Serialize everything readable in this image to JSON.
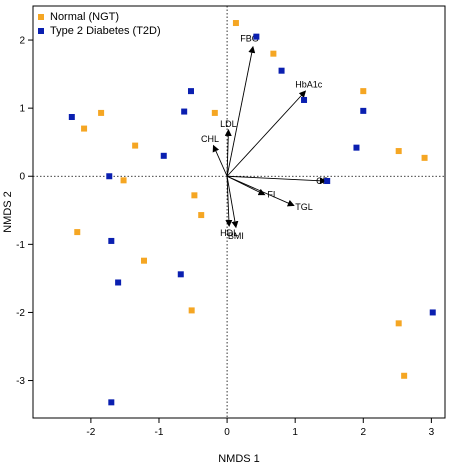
{
  "chart_data": {
    "type": "scatter",
    "xlabel": "NMDS 1",
    "ylabel": "NMDS 2",
    "xlim": [
      -2.85,
      3.2
    ],
    "ylim": [
      -3.55,
      2.5
    ],
    "xticks": [
      -2,
      -1,
      0,
      1,
      2,
      3
    ],
    "yticks": [
      2,
      1,
      0,
      -1,
      -2,
      -3
    ],
    "reference_lines": {
      "x": 0,
      "y": 0,
      "style": "dotted"
    },
    "legend_position": "top-left",
    "series": [
      {
        "name": "Normal (NGT)",
        "color": "#f5a623",
        "marker": "square",
        "points": [
          [
            0.13,
            2.25
          ],
          [
            0.68,
            1.8
          ],
          [
            2.0,
            1.25
          ],
          [
            -1.85,
            0.93
          ],
          [
            -2.1,
            0.7
          ],
          [
            -0.18,
            0.93
          ],
          [
            -1.35,
            0.45
          ],
          [
            2.52,
            0.37
          ],
          [
            2.9,
            0.27
          ],
          [
            -1.52,
            -0.06
          ],
          [
            -0.48,
            -0.28
          ],
          [
            -0.38,
            -0.57
          ],
          [
            -2.2,
            -0.82
          ],
          [
            -1.22,
            -1.24
          ],
          [
            -0.52,
            -1.97
          ],
          [
            2.52,
            -2.16
          ],
          [
            2.6,
            -2.93
          ]
        ]
      },
      {
        "name": "Type 2 Diabetes (T2D)",
        "color": "#0a1fb0",
        "marker": "square",
        "points": [
          [
            0.43,
            2.05
          ],
          [
            0.8,
            1.55
          ],
          [
            -0.53,
            1.25
          ],
          [
            1.13,
            1.12
          ],
          [
            -2.28,
            0.87
          ],
          [
            -0.63,
            0.95
          ],
          [
            2.0,
            0.96
          ],
          [
            -0.93,
            0.3
          ],
          [
            1.9,
            0.42
          ],
          [
            -1.73,
            0.0
          ],
          [
            1.47,
            -0.07
          ],
          [
            -1.7,
            -0.95
          ],
          [
            -0.68,
            -1.44
          ],
          [
            -1.6,
            -1.56
          ],
          [
            3.02,
            -2.0
          ],
          [
            -1.7,
            -3.32
          ]
        ]
      }
    ],
    "vectors": [
      {
        "label": "FBG",
        "x": 0.38,
        "y": 1.9,
        "label_dx": -0.05,
        "label_dy": 0.12
      },
      {
        "label": "HbA1c",
        "x": 1.15,
        "y": 1.25,
        "label_dx": 0.05,
        "label_dy": 0.1
      },
      {
        "label": "LDL",
        "x": 0.02,
        "y": 0.68,
        "label_dx": 0.0,
        "label_dy": 0.09
      },
      {
        "label": "CHL",
        "x": -0.2,
        "y": 0.45,
        "label_dx": -0.05,
        "label_dy": 0.1
      },
      {
        "label": "CP",
        "x": 1.45,
        "y": -0.07,
        "label_dx": -0.05,
        "label_dy": 0.0
      },
      {
        "label": "FI",
        "x": 0.55,
        "y": -0.27,
        "label_dx": 0.1,
        "label_dy": 0.0
      },
      {
        "label": "TGL",
        "x": 0.98,
        "y": -0.43,
        "label_dx": 0.15,
        "label_dy": -0.02
      },
      {
        "label": "HDL",
        "x": 0.03,
        "y": -0.73,
        "label_dx": 0.0,
        "label_dy": -0.1
      },
      {
        "label": "BMI",
        "x": 0.13,
        "y": -0.75,
        "label_dx": 0.0,
        "label_dy": -0.13
      }
    ]
  }
}
